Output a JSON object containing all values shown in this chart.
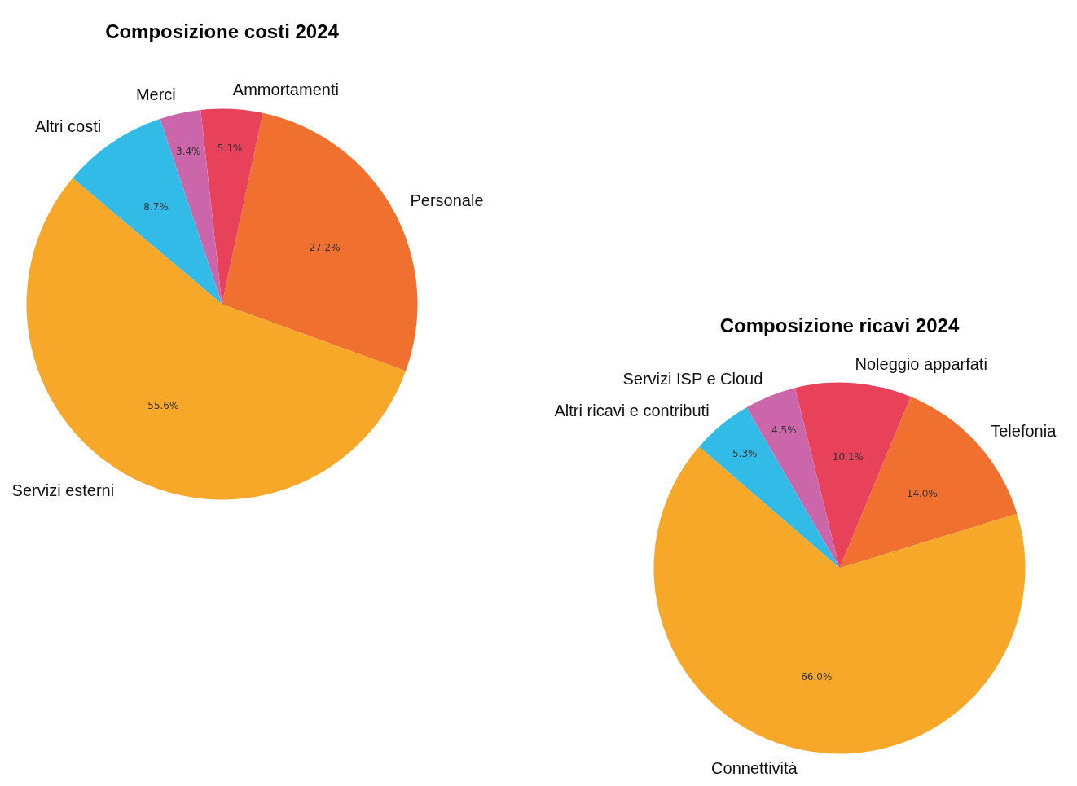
{
  "chart_data": [
    {
      "type": "pie",
      "title": "Composizione costi 2024",
      "categories": [
        "Personale",
        "Ammortamenti",
        "Merci",
        "Altri costi",
        "Servizi esterni"
      ],
      "values": [
        27.2,
        5.1,
        3.4,
        8.7,
        55.6
      ],
      "value_labels": [
        "27.2%",
        "5.1%",
        "3.4%",
        "8.7%",
        "55.6%"
      ],
      "colors": [
        "#f07030",
        "#e8425a",
        "#cc66aa",
        "#33bbe8",
        "#f8a828"
      ]
    },
    {
      "type": "pie",
      "title": "Composizione ricavi 2024",
      "categories": [
        "Telefonia",
        "Noleggio apparfati",
        "Servizi ISP e Cloud",
        "Altri ricavi e contributi",
        "Connettività"
      ],
      "values": [
        14.0,
        10.1,
        4.5,
        5.3,
        66.0
      ],
      "value_labels": [
        "14.0%",
        "10.1%",
        "4.5%",
        "5.3%",
        "66.0%"
      ],
      "colors": [
        "#f07030",
        "#e8425a",
        "#cc66aa",
        "#33bbe8",
        "#f8a828"
      ]
    }
  ]
}
